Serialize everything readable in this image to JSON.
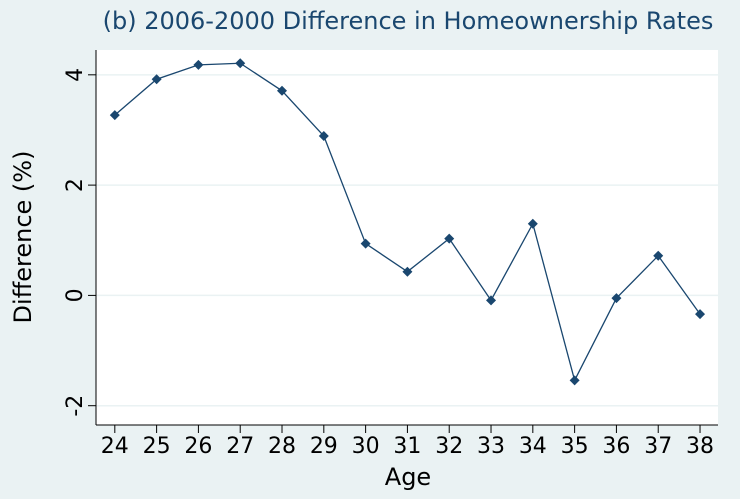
{
  "chart_data": {
    "type": "line",
    "title": "(b) 2006-2000 Difference in Homeownership Rates",
    "x_label": "Age",
    "y_label": "Difference (%)",
    "x": [
      24,
      25,
      26,
      27,
      28,
      29,
      30,
      31,
      32,
      33,
      34,
      35,
      36,
      37,
      38
    ],
    "series": [
      {
        "color": "#1a476f",
        "values": [
          3.27,
          3.92,
          4.18,
          4.21,
          3.71,
          2.89,
          0.94,
          0.43,
          1.03,
          -0.09,
          1.3,
          -1.54,
          -0.05,
          0.72,
          -0.34
        ]
      }
    ],
    "xlim": [
      23.55,
      38.43
    ],
    "ylim": [
      -2.35,
      4.45
    ],
    "xticks": [
      24,
      25,
      26,
      27,
      28,
      29,
      30,
      31,
      32,
      33,
      34,
      35,
      36,
      37,
      38
    ],
    "yticks": [
      4,
      2,
      0,
      -2
    ],
    "grid": true
  }
}
